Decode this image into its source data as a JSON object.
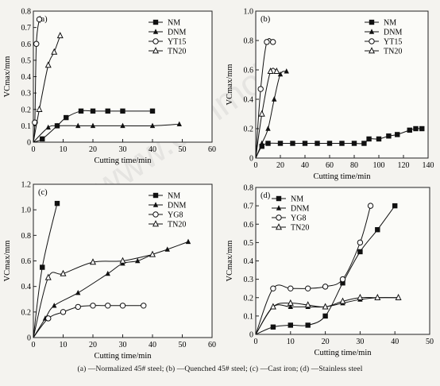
{
  "caption": "(a) —Normalized 45# steel; (b) —Quenched 45# steel; (c) —Cast iron; (d) —Stainless steel",
  "watermark": "www.cnnmol.com",
  "chart_data": [
    {
      "type": "line",
      "panel": "(a)",
      "xlabel": "Cutting time/min",
      "ylabel": "VCmax/mm",
      "xlim": [
        0,
        60
      ],
      "ylim": [
        0,
        0.8
      ],
      "xticks": [
        0,
        10,
        20,
        30,
        40,
        50,
        60
      ],
      "yticks": [
        0,
        0.1,
        0.2,
        0.3,
        0.4,
        0.5,
        0.6,
        0.7,
        0.8
      ],
      "xtick_labels": [
        "0",
        "10",
        "20",
        "30",
        "40",
        "50",
        "60"
      ],
      "ytick_labels": [
        "0",
        "0.1",
        "0.2",
        "0.3",
        "0.4",
        "0.5",
        "0.6",
        "0.7",
        "0.8"
      ],
      "legend_position": "top-right",
      "series": [
        {
          "name": "NM",
          "marker": "square",
          "points": [
            [
              0,
              0
            ],
            [
              3,
              0.02
            ],
            [
              8,
              0.1
            ],
            [
              11,
              0.15
            ],
            [
              16,
              0.19
            ],
            [
              20,
              0.19
            ],
            [
              25,
              0.19
            ],
            [
              30,
              0.19
            ],
            [
              40,
              0.19
            ]
          ]
        },
        {
          "name": "DNM",
          "marker": "triangle-filled",
          "points": [
            [
              0,
              0
            ],
            [
              5,
              0.09
            ],
            [
              8,
              0.1
            ],
            [
              15,
              0.1
            ],
            [
              20,
              0.1
            ],
            [
              30,
              0.1
            ],
            [
              40,
              0.1
            ],
            [
              49,
              0.11
            ]
          ]
        },
        {
          "name": "YT15",
          "marker": "circle-open",
          "points": [
            [
              0,
              0
            ],
            [
              0.5,
              0.12
            ],
            [
              1,
              0.6
            ],
            [
              2,
              0.75
            ]
          ]
        },
        {
          "name": "TN20",
          "marker": "triangle-open",
          "points": [
            [
              0,
              0
            ],
            [
              2,
              0.2
            ],
            [
              5,
              0.47
            ],
            [
              7,
              0.55
            ],
            [
              9,
              0.65
            ]
          ]
        }
      ]
    },
    {
      "type": "line",
      "panel": "(b)",
      "xlabel": "Cutting time/min",
      "ylabel": "VCmax/mm",
      "xlim": [
        0,
        140
      ],
      "ylim": [
        0,
        1.0
      ],
      "xticks": [
        0,
        20,
        40,
        60,
        80,
        100,
        120,
        140
      ],
      "yticks": [
        0,
        0.2,
        0.4,
        0.6,
        0.8,
        1.0
      ],
      "xtick_labels": [
        "0",
        "20",
        "40",
        "60",
        "80",
        "100",
        "120",
        "140"
      ],
      "ytick_labels": [
        "0",
        "0.2",
        "0.4",
        "0.6",
        "0.8",
        "1.0"
      ],
      "legend_position": "top-right",
      "series": [
        {
          "name": "NM",
          "marker": "square",
          "points": [
            [
              0,
              0
            ],
            [
              5,
              0.08
            ],
            [
              10,
              0.1
            ],
            [
              20,
              0.1
            ],
            [
              30,
              0.1
            ],
            [
              40,
              0.1
            ],
            [
              50,
              0.1
            ],
            [
              60,
              0.1
            ],
            [
              70,
              0.1
            ],
            [
              80,
              0.1
            ],
            [
              88,
              0.1
            ],
            [
              92,
              0.13
            ],
            [
              100,
              0.13
            ],
            [
              108,
              0.15
            ],
            [
              115,
              0.16
            ],
            [
              125,
              0.19
            ],
            [
              130,
              0.2
            ],
            [
              135,
              0.2
            ]
          ]
        },
        {
          "name": "DNM",
          "marker": "triangle-filled",
          "points": [
            [
              0,
              0
            ],
            [
              5,
              0.1
            ],
            [
              10,
              0.2
            ],
            [
              15,
              0.4
            ],
            [
              20,
              0.57
            ],
            [
              25,
              0.59
            ]
          ]
        },
        {
          "name": "YT15",
          "marker": "circle-open",
          "points": [
            [
              0,
              0
            ],
            [
              4,
              0.47
            ],
            [
              9,
              0.79
            ],
            [
              14,
              0.79
            ]
          ]
        },
        {
          "name": "TN20",
          "marker": "triangle-open",
          "points": [
            [
              0,
              0
            ],
            [
              5,
              0.3
            ],
            [
              12,
              0.59
            ],
            [
              17,
              0.59
            ]
          ]
        }
      ]
    },
    {
      "type": "line",
      "panel": "(c)",
      "xlabel": "Cutting time/min",
      "ylabel": "VCmax/mm",
      "xlim": [
        0,
        60
      ],
      "ylim": [
        0,
        1.2
      ],
      "xticks": [
        0,
        10,
        20,
        30,
        40,
        50,
        60
      ],
      "yticks": [
        0,
        0.2,
        0.4,
        0.6,
        0.8,
        1.0,
        1.2
      ],
      "xtick_labels": [
        "0",
        "10",
        "20",
        "30",
        "40",
        "50",
        "60"
      ],
      "ytick_labels": [
        "0",
        "0.2",
        "0.4",
        "0.6",
        "0.8",
        "1.0",
        "1.2"
      ],
      "legend_position": "top-right",
      "series": [
        {
          "name": "NM",
          "marker": "square",
          "points": [
            [
              0,
              0
            ],
            [
              3,
              0.55
            ],
            [
              8,
              1.05
            ]
          ]
        },
        {
          "name": "DNM",
          "marker": "triangle-filled",
          "points": [
            [
              0,
              0
            ],
            [
              4,
              0.15
            ],
            [
              7,
              0.25
            ],
            [
              15,
              0.35
            ],
            [
              25,
              0.5
            ],
            [
              30,
              0.58
            ],
            [
              35,
              0.6
            ],
            [
              40,
              0.65
            ],
            [
              45,
              0.69
            ],
            [
              52,
              0.75
            ]
          ]
        },
        {
          "name": "YG8",
          "marker": "circle-open",
          "points": [
            [
              0,
              0
            ],
            [
              5,
              0.15
            ],
            [
              10,
              0.2
            ],
            [
              15,
              0.24
            ],
            [
              20,
              0.25
            ],
            [
              25,
              0.25
            ],
            [
              30,
              0.25
            ],
            [
              37,
              0.25
            ]
          ]
        },
        {
          "name": "TN20",
          "marker": "triangle-open",
          "points": [
            [
              0,
              0
            ],
            [
              5,
              0.47
            ],
            [
              10,
              0.5
            ],
            [
              20,
              0.59
            ],
            [
              30,
              0.6
            ],
            [
              40,
              0.65
            ]
          ]
        }
      ]
    },
    {
      "type": "line",
      "panel": "(d)",
      "xlabel": "Cutting time/min",
      "ylabel": "VCmax/mm",
      "xlim": [
        0,
        50
      ],
      "ylim": [
        0,
        0.8
      ],
      "xticks": [
        0,
        10,
        20,
        30,
        40,
        50
      ],
      "yticks": [
        0,
        0.1,
        0.2,
        0.3,
        0.4,
        0.5,
        0.6,
        0.7,
        0.8
      ],
      "xtick_labels": [
        "0",
        "10",
        "20",
        "30",
        "40",
        "50"
      ],
      "ytick_labels": [
        "0",
        "0.1",
        "0.2",
        "0.3",
        "0.4",
        "0.5",
        "0.6",
        "0.7",
        "0.8"
      ],
      "legend_position": "top-left",
      "series": [
        {
          "name": "NM",
          "marker": "square",
          "points": [
            [
              0,
              0
            ],
            [
              5,
              0.04
            ],
            [
              10,
              0.05
            ],
            [
              15,
              0.05
            ],
            [
              20,
              0.1
            ],
            [
              25,
              0.28
            ],
            [
              30,
              0.45
            ],
            [
              35,
              0.57
            ],
            [
              40,
              0.7
            ]
          ]
        },
        {
          "name": "DNM",
          "marker": "triangle-filled",
          "points": [
            [
              0,
              0
            ],
            [
              5,
              0.15
            ],
            [
              10,
              0.15
            ],
            [
              15,
              0.15
            ],
            [
              20,
              0.15
            ],
            [
              25,
              0.17
            ],
            [
              30,
              0.19
            ],
            [
              35,
              0.2
            ],
            [
              41,
              0.2
            ]
          ]
        },
        {
          "name": "YG8",
          "marker": "circle-open",
          "points": [
            [
              0,
              0
            ],
            [
              5,
              0.25
            ],
            [
              10,
              0.25
            ],
            [
              15,
              0.25
            ],
            [
              20,
              0.26
            ],
            [
              25,
              0.3
            ],
            [
              30,
              0.5
            ],
            [
              33,
              0.7
            ]
          ]
        },
        {
          "name": "TN20",
          "marker": "triangle-open",
          "points": [
            [
              0,
              0
            ],
            [
              5,
              0.15
            ],
            [
              10,
              0.17
            ],
            [
              15,
              0.16
            ],
            [
              20,
              0.15
            ],
            [
              25,
              0.18
            ],
            [
              30,
              0.2
            ],
            [
              35,
              0.2
            ],
            [
              41,
              0.2
            ]
          ]
        }
      ]
    }
  ]
}
